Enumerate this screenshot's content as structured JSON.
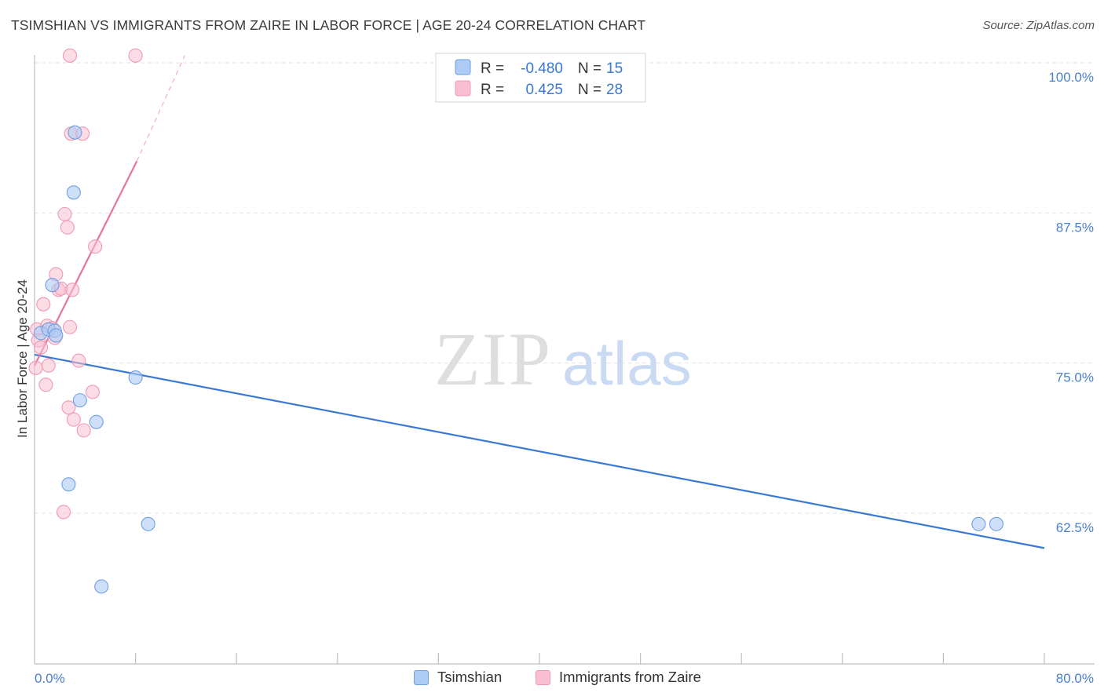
{
  "title": "TSIMSHIAN VS IMMIGRANTS FROM ZAIRE IN LABOR FORCE | AGE 20-24 CORRELATION CHART",
  "source": "Source: ZipAtlas.com",
  "watermark": {
    "zip": "ZIP",
    "atlas": "atlas"
  },
  "colors": {
    "blue_fill": "#aecbf5",
    "blue_stroke": "#6f9fe0",
    "blue_line": "#3a78d4",
    "pink_fill": "#f9bfd0",
    "pink_stroke": "#ee9ab4",
    "pink_line": "#e8749f",
    "grid": "#e3e3e3",
    "tick_text": "#4a7fd0"
  },
  "legend_box": {
    "row1": {
      "r_label": "R =",
      "r_value": "-0.480",
      "n_label": "N =",
      "n_value": "15"
    },
    "row2": {
      "r_label": "R =",
      "r_value": "0.425",
      "n_label": "N =",
      "n_value": "28"
    }
  },
  "chart_data": {
    "type": "scatter",
    "title": "TSIMSHIAN VS IMMIGRANTS FROM ZAIRE IN LABOR FORCE | AGE 20-24 CORRELATION CHART",
    "xlabel": "",
    "ylabel": "In Labor Force | Age 20-24",
    "xlim": [
      0,
      80
    ],
    "ylim": [
      52.5,
      100.5
    ],
    "x_tick_labels": [
      {
        "value": 0,
        "label": "0.0%"
      },
      {
        "value": 80,
        "label": "80.0%"
      }
    ],
    "x_minor_ticks": [
      8,
      16,
      24,
      32,
      40,
      48,
      56,
      64,
      72,
      80
    ],
    "y_ticks": [
      {
        "value": 100,
        "label": "100.0%"
      },
      {
        "value": 87.5,
        "label": "87.5%"
      },
      {
        "value": 75,
        "label": "75.0%"
      },
      {
        "value": 62.5,
        "label": "62.5%"
      }
    ],
    "grid": true,
    "legend_position": "top-center",
    "series": [
      {
        "name": "Tsimshian",
        "color": "blue",
        "points": [
          [
            0.5,
            77.5
          ],
          [
            1.1,
            77.8
          ],
          [
            1.4,
            81.5
          ],
          [
            1.6,
            77.7
          ],
          [
            1.7,
            77.3
          ],
          [
            3.1,
            89.2
          ],
          [
            3.2,
            94.2
          ],
          [
            3.6,
            71.9
          ],
          [
            4.9,
            70.1
          ],
          [
            2.7,
            64.9
          ],
          [
            8.0,
            73.8
          ],
          [
            9.0,
            61.6
          ],
          [
            5.3,
            56.4
          ],
          [
            74.8,
            61.6
          ],
          [
            76.2,
            61.6
          ]
        ],
        "trend": {
          "x0": 0.0,
          "y0": 75.7,
          "x1": 80.0,
          "y1": 59.6
        }
      },
      {
        "name": "Immigrants from Zaire",
        "color": "pink",
        "points": [
          [
            0.1,
            74.6
          ],
          [
            0.2,
            77.8
          ],
          [
            0.3,
            76.9
          ],
          [
            0.5,
            76.3
          ],
          [
            0.7,
            79.9
          ],
          [
            0.9,
            73.2
          ],
          [
            1.0,
            78.1
          ],
          [
            1.1,
            74.8
          ],
          [
            1.4,
            77.9
          ],
          [
            1.6,
            77.1
          ],
          [
            1.7,
            82.4
          ],
          [
            1.9,
            81.1
          ],
          [
            2.1,
            81.2
          ],
          [
            2.3,
            62.6
          ],
          [
            2.4,
            87.4
          ],
          [
            2.6,
            86.3
          ],
          [
            2.7,
            71.3
          ],
          [
            2.8,
            78.0
          ],
          [
            2.9,
            94.1
          ],
          [
            3.0,
            81.1
          ],
          [
            3.1,
            70.3
          ],
          [
            3.5,
            75.2
          ],
          [
            3.8,
            94.1
          ],
          [
            3.9,
            69.4
          ],
          [
            4.6,
            72.6
          ],
          [
            4.8,
            84.7
          ],
          [
            2.8,
            100.6
          ],
          [
            8.0,
            100.6
          ]
        ],
        "trend": {
          "x0": 0.0,
          "y0": 74.8,
          "x1": 8.1,
          "y1": 91.8
        },
        "trend_extension": {
          "x0": 8.1,
          "y0": 91.8,
          "x1": 11.9,
          "y1": 100.6
        }
      }
    ]
  }
}
